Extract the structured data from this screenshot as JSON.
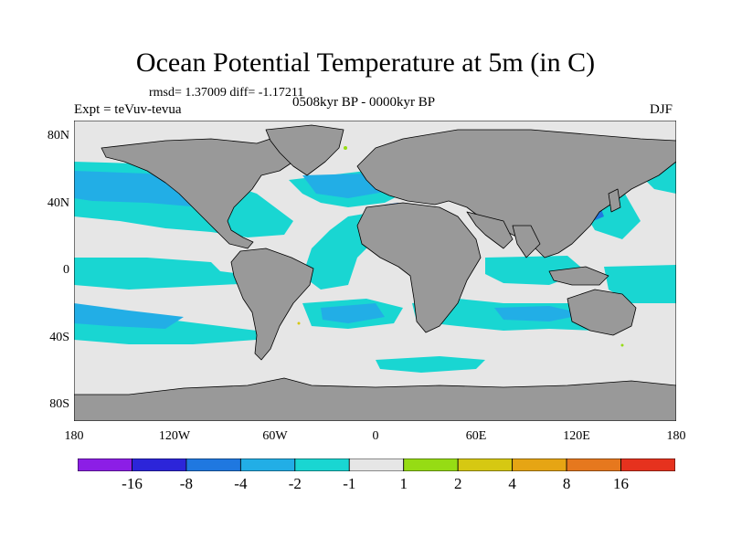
{
  "title": "Ocean Potential Temperature at 5m (in C)",
  "stats": "rmsd= 1.37009 diff= -1.17211",
  "experiment": "Expt = teVuv-tevua",
  "period": "0508kyr BP - 0000kyr BP",
  "season": "DJF",
  "latitude_labels": [
    "80N",
    "40N",
    "0",
    "40S",
    "80S"
  ],
  "longitude_labels": [
    "180",
    "120W",
    "60W",
    "0",
    "60E",
    "120E",
    "180"
  ],
  "colorbar": {
    "colors": [
      "#8c1ee6",
      "#2c25d9",
      "#1f78e0",
      "#22aee6",
      "#19d6d2",
      "#e6e6e6",
      "#96dc14",
      "#d6c812",
      "#e6a514",
      "#e6781e",
      "#e6321e"
    ],
    "labels": [
      "-16",
      "-8",
      "-4",
      "-2",
      "-1",
      "1",
      "2",
      "4",
      "8",
      "16"
    ]
  },
  "map_colors": {
    "land": "#999999",
    "coast": "#000000",
    "no_change": "#e6e6e6",
    "cool_1_2": "#19d6d2",
    "cool_2_4": "#22aee6",
    "cool_4_8": "#1f78e0",
    "warm_1_2": "#96dc14",
    "warm_2_4": "#d6c812"
  }
}
